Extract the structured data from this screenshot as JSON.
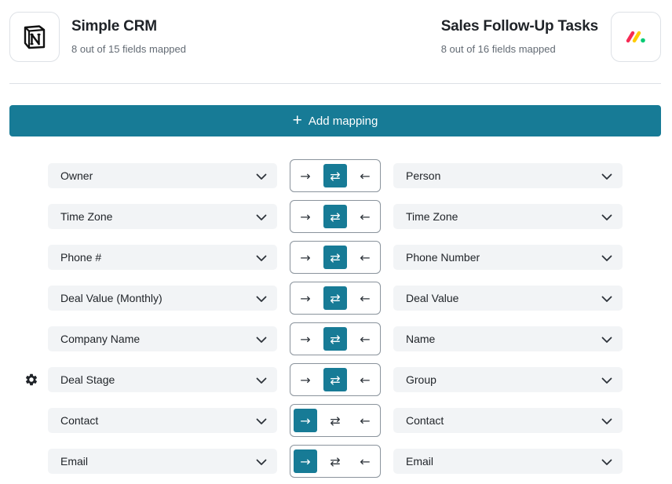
{
  "left_app": {
    "name": "Simple CRM",
    "subtitle": "8 out of 15 fields mapped",
    "icon": "notion-logo-icon"
  },
  "right_app": {
    "name": "Sales Follow-Up Tasks",
    "subtitle": "8 out of 16 fields mapped",
    "icon": "monday-logo-icon"
  },
  "add_button": {
    "label": "Add mapping",
    "icon": "plus-icon"
  },
  "colors": {
    "accent": "#177b96",
    "field_bg": "#f2f4f6",
    "border": "#dde1e6"
  },
  "direction_glyphs": {
    "right": "→",
    "both": "⇄",
    "left": "←"
  },
  "mappings": [
    {
      "left": "Owner",
      "right": "Person",
      "direction": "both",
      "has_settings": false
    },
    {
      "left": "Time Zone",
      "right": "Time Zone",
      "direction": "both",
      "has_settings": false
    },
    {
      "left": "Phone #",
      "right": "Phone Number",
      "direction": "both",
      "has_settings": false
    },
    {
      "left": "Deal Value (Monthly)",
      "right": "Deal Value",
      "direction": "both",
      "has_settings": false
    },
    {
      "left": "Company Name",
      "right": "Name",
      "direction": "both",
      "has_settings": false
    },
    {
      "left": "Deal Stage",
      "right": "Group",
      "direction": "both",
      "has_settings": true
    },
    {
      "left": "Contact",
      "right": "Contact",
      "direction": "right",
      "has_settings": false
    },
    {
      "left": "Email",
      "right": "Email",
      "direction": "right",
      "has_settings": false
    }
  ]
}
